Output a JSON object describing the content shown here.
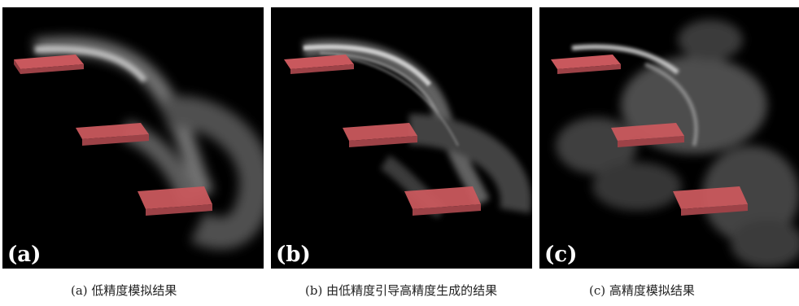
{
  "panels": [
    {
      "tag": "(a)",
      "caption": "(a) 低精度模拟结果"
    },
    {
      "tag": "(b)",
      "caption": "(b) 由低精度引导高精度生成的结果"
    },
    {
      "tag": "(c)",
      "caption": "(c) 高精度模拟结果"
    }
  ],
  "colors": {
    "obstacle_top": "#c7575c",
    "obstacle_side": "#8f3a3f",
    "background": "#000000",
    "smoke": "#bfbfbf"
  }
}
